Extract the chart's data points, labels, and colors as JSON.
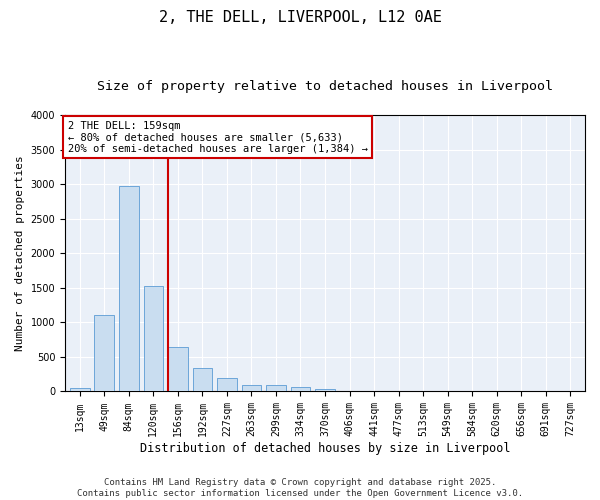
{
  "title": "2, THE DELL, LIVERPOOL, L12 0AE",
  "subtitle": "Size of property relative to detached houses in Liverpool",
  "xlabel": "Distribution of detached houses by size in Liverpool",
  "ylabel": "Number of detached properties",
  "bin_labels": [
    "13sqm",
    "49sqm",
    "84sqm",
    "120sqm",
    "156sqm",
    "192sqm",
    "227sqm",
    "263sqm",
    "299sqm",
    "334sqm",
    "370sqm",
    "406sqm",
    "441sqm",
    "477sqm",
    "513sqm",
    "549sqm",
    "584sqm",
    "620sqm",
    "656sqm",
    "691sqm",
    "727sqm"
  ],
  "bar_values": [
    50,
    1100,
    2970,
    1530,
    650,
    340,
    195,
    90,
    90,
    65,
    30,
    10,
    5,
    2,
    1,
    0,
    0,
    0,
    0,
    0,
    0
  ],
  "bar_color": "#c9ddf0",
  "bar_edge_color": "#5b9bd5",
  "vline_color": "#cc0000",
  "annotation_text": "2 THE DELL: 159sqm\n← 80% of detached houses are smaller (5,633)\n20% of semi-detached houses are larger (1,384) →",
  "annotation_box_color": "#cc0000",
  "ylim": [
    0,
    4000
  ],
  "yticks": [
    0,
    500,
    1000,
    1500,
    2000,
    2500,
    3000,
    3500,
    4000
  ],
  "bg_color": "#eaf0f8",
  "footnote": "Contains HM Land Registry data © Crown copyright and database right 2025.\nContains public sector information licensed under the Open Government Licence v3.0.",
  "title_fontsize": 11,
  "subtitle_fontsize": 9.5,
  "xlabel_fontsize": 8.5,
  "ylabel_fontsize": 8,
  "tick_fontsize": 7,
  "annot_fontsize": 7.5,
  "footnote_fontsize": 6.5
}
